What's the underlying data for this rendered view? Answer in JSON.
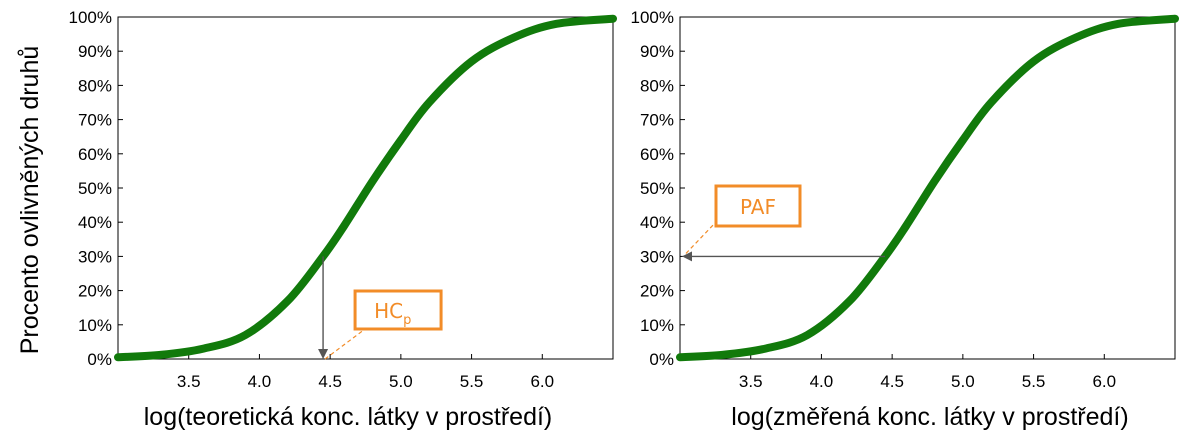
{
  "shared_ylabel": "Procento ovlivněných druhů",
  "colors": {
    "curve": "#117A0B",
    "annotation": "#F28C28",
    "arrow": "#555555",
    "frame": "#000000"
  },
  "chart_data": [
    {
      "type": "line",
      "title": "",
      "xlabel": "log(teoretická konc. látky v prostředí)",
      "ylabel": "Procento ovlivněných druhů",
      "xlim": [
        3.0,
        6.5
      ],
      "ylim": [
        0,
        100
      ],
      "x_ticks": [
        "3.5",
        "4.0",
        "4.5",
        "5.0",
        "5.5",
        "6.0"
      ],
      "y_ticks": [
        "0%",
        "10%",
        "20%",
        "30%",
        "40%",
        "50%",
        "60%",
        "70%",
        "80%",
        "90%",
        "100%"
      ],
      "series": [
        {
          "x": [
            3.0,
            3.3,
            3.6,
            3.9,
            4.2,
            4.45,
            4.6,
            4.8,
            5.0,
            5.2,
            5.5,
            5.8,
            6.1,
            6.5
          ],
          "y": [
            0.5,
            1.2,
            3,
            7,
            17,
            30,
            39,
            52,
            64,
            75,
            87,
            94,
            98,
            99.5
          ]
        }
      ],
      "annotation": {
        "label": "HC",
        "subscript": "p",
        "x": 4.45,
        "y": 30,
        "arrow": "vertical-down"
      }
    },
    {
      "type": "line",
      "title": "",
      "xlabel": "log(změřená konc. látky v prostředí)",
      "ylabel": "",
      "xlim": [
        3.0,
        6.5
      ],
      "ylim": [
        0,
        100
      ],
      "x_ticks": [
        "3.5",
        "4.0",
        "4.5",
        "5.0",
        "5.5",
        "6.0"
      ],
      "y_ticks": [
        "0%",
        "10%",
        "20%",
        "30%",
        "40%",
        "50%",
        "60%",
        "70%",
        "80%",
        "90%",
        "100%"
      ],
      "series": [
        {
          "x": [
            3.0,
            3.3,
            3.6,
            3.9,
            4.2,
            4.45,
            4.6,
            4.8,
            5.0,
            5.2,
            5.5,
            5.8,
            6.1,
            6.5
          ],
          "y": [
            0.5,
            1.2,
            3,
            7,
            17,
            30,
            39,
            52,
            64,
            75,
            87,
            94,
            98,
            99.5
          ]
        }
      ],
      "annotation": {
        "label": "PAF",
        "subscript": "",
        "x": 4.45,
        "y": 30,
        "arrow": "horizontal-left"
      }
    }
  ]
}
